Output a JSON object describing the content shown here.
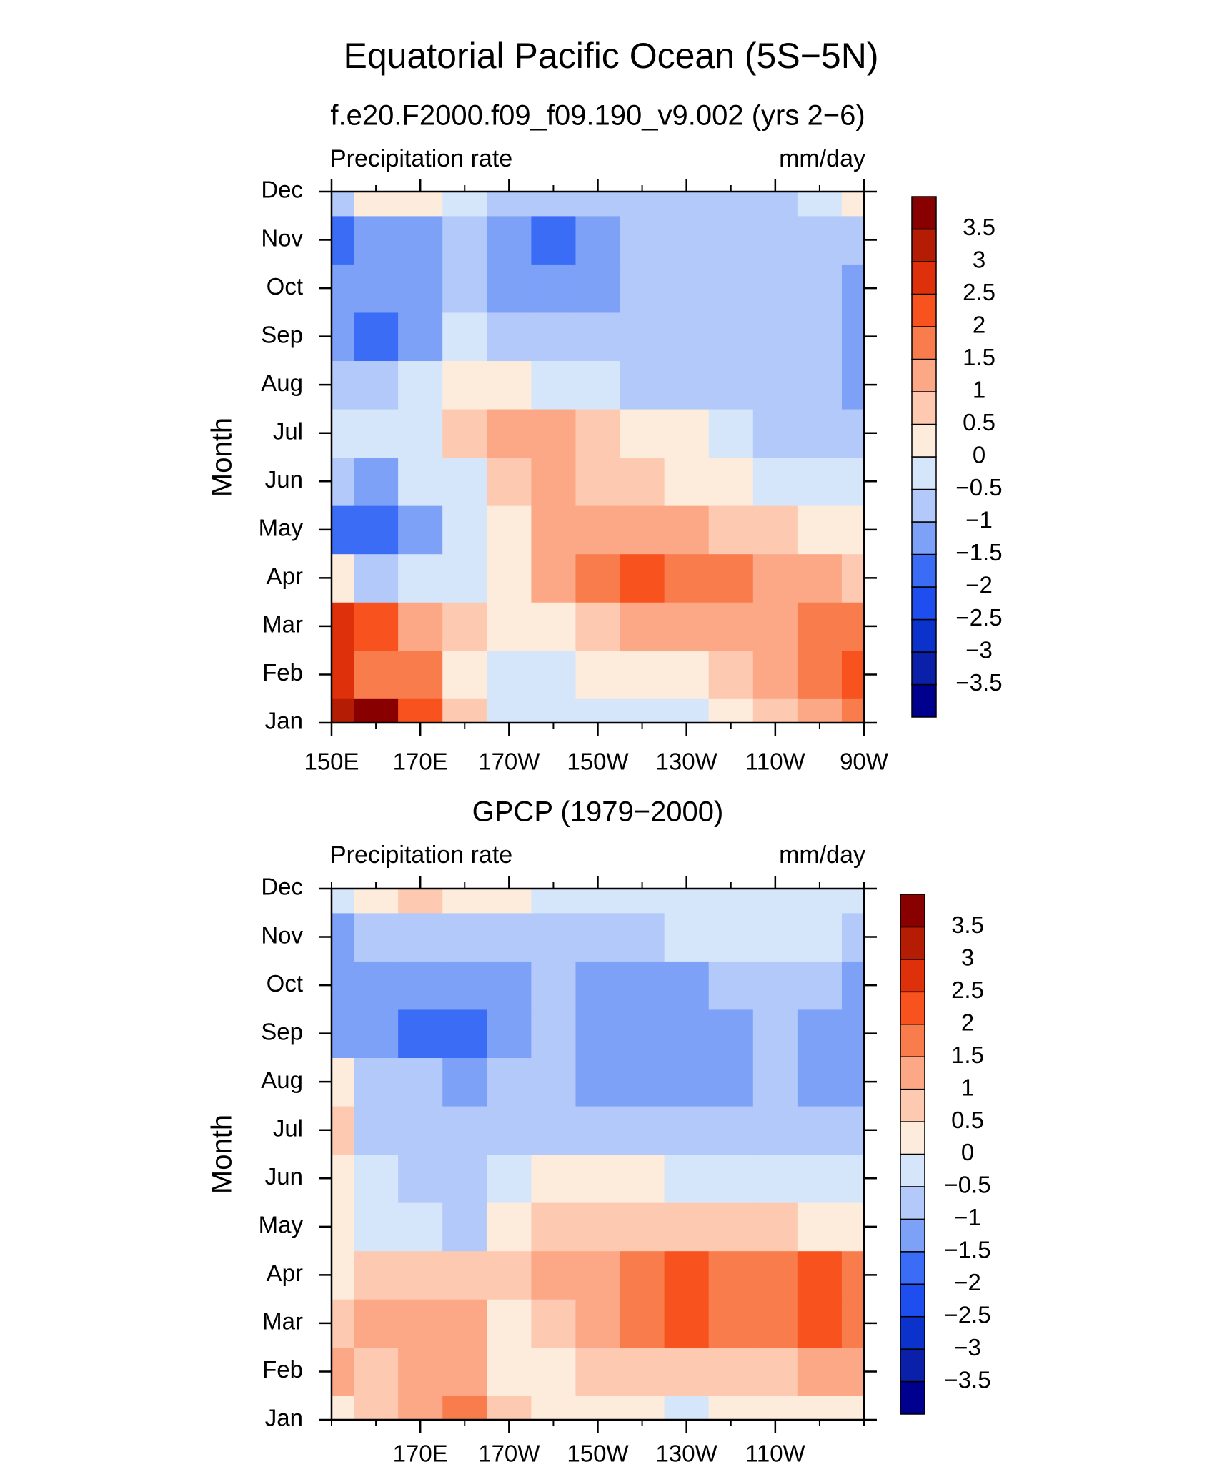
{
  "title": "Equatorial Pacific Ocean (5S−5N)",
  "chart_data": [
    {
      "type": "contour",
      "subtitle": "f.e20.F2000.f09_f09.190_v9.002 (yrs 2−6)",
      "left_label": "Precipitation rate",
      "right_label": "mm/day",
      "y_label": "Month",
      "x": [
        150,
        160,
        170,
        180,
        190,
        200,
        210,
        220,
        230,
        240,
        250,
        260,
        270
      ],
      "categories": [
        "Jan",
        "Feb",
        "Mar",
        "Apr",
        "May",
        "Jun",
        "Jul",
        "Aug",
        "Sep",
        "Oct",
        "Nov",
        "Dec"
      ],
      "values": [
        [
          3,
          3.5,
          2,
          0.7,
          -0.2,
          -0.2,
          -0.2,
          -0.2,
          -0.2,
          0.2,
          0.7,
          1.2,
          1.8
        ],
        [
          2.8,
          1.5,
          1.5,
          0.3,
          -0.3,
          -0.2,
          0.2,
          0.3,
          0.4,
          0.7,
          1.2,
          1.7,
          2.2
        ],
        [
          2.6,
          2.2,
          1.2,
          0.6,
          0.2,
          0.4,
          0.7,
          1.2,
          1.2,
          1.2,
          1.4,
          1.8,
          1.8
        ],
        [
          0.3,
          -0.6,
          -0.3,
          -0.2,
          0.2,
          1.2,
          1.8,
          2.2,
          1.8,
          1.7,
          1.2,
          1.0,
          0.8
        ],
        [
          -1.7,
          -2.0,
          -1.2,
          -0.3,
          0.3,
          1.4,
          1.2,
          1.2,
          1.1,
          0.8,
          0.6,
          0.3,
          0.2
        ],
        [
          -0.8,
          -1.2,
          -0.5,
          -0.2,
          0.6,
          1.1,
          0.9,
          0.6,
          0.3,
          0.1,
          -0.2,
          -0.3,
          -0.4
        ],
        [
          -0.3,
          -0.4,
          -0.2,
          0.6,
          1.2,
          1.3,
          0.6,
          0.3,
          0.1,
          -0.3,
          -0.6,
          -0.7,
          -0.8
        ],
        [
          -0.8,
          -0.9,
          -0.3,
          0.2,
          0.1,
          -0.2,
          -0.4,
          -0.6,
          -0.7,
          -0.8,
          -0.8,
          -0.8,
          -1.2
        ],
        [
          -1.3,
          -1.8,
          -1.2,
          -0.4,
          -0.7,
          -0.8,
          -0.8,
          -0.8,
          -0.8,
          -0.8,
          -0.8,
          -0.8,
          -1.2
        ],
        [
          -1.2,
          -1.3,
          -1.1,
          -0.8,
          -1.2,
          -1.3,
          -1.1,
          -0.8,
          -0.8,
          -0.8,
          -0.8,
          -0.8,
          -1.1
        ],
        [
          -1.8,
          -1.3,
          -1.2,
          -0.8,
          -1.3,
          -1.6,
          -1.3,
          -0.9,
          -0.8,
          -0.8,
          -0.8,
          -0.8,
          -0.6
        ],
        [
          -0.7,
          0.3,
          0.2,
          -0.3,
          -0.7,
          -0.8,
          -0.7,
          -0.7,
          -0.7,
          -0.7,
          -0.6,
          -0.5,
          0.2
        ]
      ],
      "xlim": [
        150,
        270
      ],
      "xticks": [
        {
          "value": 150,
          "label": "150E"
        },
        {
          "value": 170,
          "label": "170E"
        },
        {
          "value": 190,
          "label": "170W"
        },
        {
          "value": 210,
          "label": "150W"
        },
        {
          "value": 230,
          "label": "130W"
        },
        {
          "value": 250,
          "label": "110W"
        },
        {
          "value": 270,
          "label": "90W"
        }
      ],
      "xminorticks": [
        160,
        180,
        200,
        220,
        240,
        260
      ],
      "levels": [
        {
          "value": -3.5,
          "label": "−3.5"
        },
        {
          "value": -3,
          "label": "−3"
        },
        {
          "value": -2.5,
          "label": "−2.5"
        },
        {
          "value": -2,
          "label": "−2"
        },
        {
          "value": -1.5,
          "label": "−1.5"
        },
        {
          "value": -1,
          "label": "−1"
        },
        {
          "value": -0.5,
          "label": "−0.5"
        },
        0,
        0.5,
        1,
        1.5,
        2,
        2.5,
        3,
        3.5
      ],
      "colors": [
        "#00008f",
        "#0b20a8",
        "#0b33cc",
        "#1e4ef0",
        "#3b6cf6",
        "#7ea1f8",
        "#b3c9fa",
        "#d6e6fa",
        "#fdebdb",
        "#fdc9b0",
        "#fca887",
        "#f97c4c",
        "#f8521e",
        "#de300b",
        "#b41d04",
        "#880000"
      ]
    },
    {
      "type": "contour",
      "subtitle": "GPCP (1979−2000)",
      "left_label": "Precipitation rate",
      "right_label": "mm/day",
      "y_label": "Month",
      "x": [
        150,
        160,
        170,
        180,
        190,
        200,
        210,
        220,
        230,
        240,
        250,
        260,
        270
      ],
      "categories": [
        "Jan",
        "Feb",
        "Mar",
        "Apr",
        "May",
        "Jun",
        "Jul",
        "Aug",
        "Sep",
        "Oct",
        "Nov",
        "Dec"
      ],
      "values": [
        [
          0.3,
          0.7,
          1.2,
          1.8,
          0.7,
          0.3,
          0.2,
          0.2,
          -0.1,
          0.1,
          0.2,
          0.2,
          0.3
        ],
        [
          1.0,
          0.8,
          1.4,
          1.3,
          0.3,
          0.4,
          0.7,
          0.8,
          0.8,
          0.8,
          0.9,
          1.0,
          1.2
        ],
        [
          0.8,
          1.2,
          1.4,
          1.2,
          0.3,
          0.8,
          1.2,
          1.6,
          2.0,
          1.7,
          1.9,
          2.0,
          1.6
        ],
        [
          0.2,
          0.7,
          0.9,
          0.7,
          0.8,
          1.0,
          1.2,
          1.7,
          2.0,
          1.8,
          1.7,
          2.0,
          1.6
        ],
        [
          0.2,
          -0.2,
          -0.3,
          -0.6,
          0.3,
          0.7,
          0.7,
          0.8,
          0.6,
          0.6,
          0.5,
          0.3,
          0.1
        ],
        [
          0.4,
          -0.3,
          -0.8,
          -0.7,
          -0.3,
          0.1,
          0.3,
          0.2,
          -0.2,
          -0.3,
          -0.4,
          -0.5,
          -0.4
        ],
        [
          0.5,
          -0.6,
          -0.8,
          -0.8,
          -0.7,
          -0.6,
          -0.6,
          -0.6,
          -0.7,
          -0.7,
          -0.8,
          -1.0,
          -0.9
        ],
        [
          0.2,
          -0.8,
          -1.0,
          -1.1,
          -0.9,
          -0.8,
          -1.1,
          -1.2,
          -1.2,
          -1.2,
          -0.8,
          -1.2,
          -1.3
        ],
        [
          -1.3,
          -1.1,
          -1.7,
          -1.6,
          -1.3,
          -0.8,
          -1.2,
          -1.3,
          -1.3,
          -1.2,
          -0.8,
          -1.2,
          -1.3
        ],
        [
          -1.2,
          -1.1,
          -1.2,
          -1.5,
          -1.1,
          -0.9,
          -1.1,
          -1.2,
          -1.1,
          -0.9,
          -0.7,
          -0.9,
          -1.2
        ],
        [
          -1.1,
          -0.9,
          -0.8,
          -0.8,
          -0.7,
          -0.7,
          -0.6,
          -0.6,
          -0.5,
          -0.4,
          -0.4,
          -0.5,
          -0.6
        ],
        [
          -0.4,
          0.3,
          0.8,
          0.4,
          0.2,
          -0.2,
          -0.3,
          -0.3,
          -0.3,
          -0.4,
          -0.4,
          -0.4,
          -0.4
        ]
      ],
      "xlim": [
        150,
        270
      ],
      "xticks": [
        {
          "value": 170,
          "label": "170E"
        },
        {
          "value": 190,
          "label": "170W"
        },
        {
          "value": 210,
          "label": "150W"
        },
        {
          "value": 230,
          "label": "130W"
        },
        {
          "value": 250,
          "label": "110W"
        }
      ],
      "xminorticks": [
        150,
        160,
        180,
        200,
        220,
        240,
        260,
        270
      ],
      "levels": [
        {
          "value": -3.5,
          "label": "−3.5"
        },
        {
          "value": -3,
          "label": "−3"
        },
        {
          "value": -2.5,
          "label": "−2.5"
        },
        {
          "value": -2,
          "label": "−2"
        },
        {
          "value": -1.5,
          "label": "−1.5"
        },
        {
          "value": -1,
          "label": "−1"
        },
        {
          "value": -0.5,
          "label": "−0.5"
        },
        0,
        0.5,
        1,
        1.5,
        2,
        2.5,
        3,
        3.5
      ],
      "colors": [
        "#00008f",
        "#0b20a8",
        "#0b33cc",
        "#1e4ef0",
        "#3b6cf6",
        "#7ea1f8",
        "#b3c9fa",
        "#d6e6fa",
        "#fdebdb",
        "#fdc9b0",
        "#fca887",
        "#f97c4c",
        "#f8521e",
        "#de300b",
        "#b41d04",
        "#880000"
      ]
    }
  ]
}
